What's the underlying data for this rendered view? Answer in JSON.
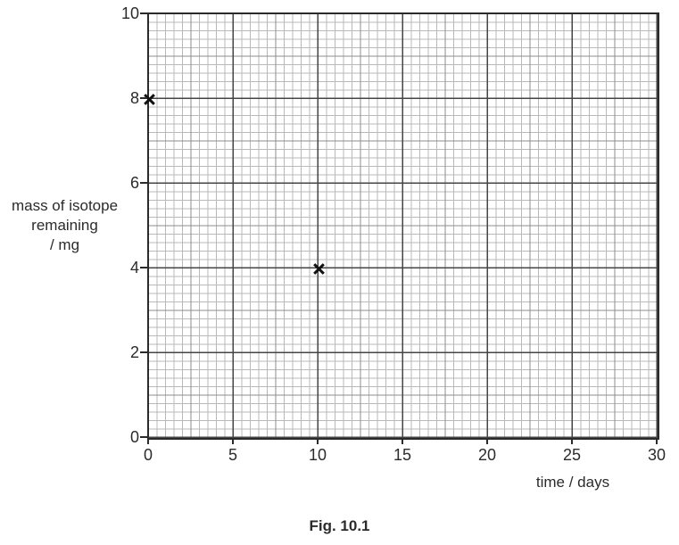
{
  "figure": {
    "caption": "Fig. 10.1"
  },
  "chart_data": {
    "type": "scatter",
    "title": "",
    "xlabel": "time / days",
    "ylabel": "mass of isotope remaining / mg",
    "ylabel_lines": [
      "mass of isotope",
      "remaining",
      "/ mg"
    ],
    "xlim": [
      0,
      30
    ],
    "ylim": [
      0,
      10
    ],
    "x_ticks": [
      "0",
      "5",
      "10",
      "15",
      "20",
      "25",
      "30"
    ],
    "y_ticks": [
      "10",
      "8",
      "6",
      "4",
      "2",
      "0"
    ],
    "grid": {
      "style": "graph-paper",
      "fine_step_x_days": 0.5,
      "fine_step_y_mg": 0.2,
      "medium_step_x_days": 2.5,
      "medium_step_y_mg": 1,
      "heavy_step_x_days": 5,
      "heavy_step_y_mg": 2
    },
    "legend": null,
    "marker": "x",
    "points": [
      {
        "x": 0,
        "y": 8
      },
      {
        "x": 10,
        "y": 4
      }
    ]
  },
  "colors": {
    "background": "#ffffff",
    "fine_grid": "#b9b9b9",
    "medium_grid": "#8d8d8d",
    "heavy_grid": "#454545",
    "axis": "#2b2b2b",
    "text": "#2b2b2b",
    "marker": "#111111"
  }
}
